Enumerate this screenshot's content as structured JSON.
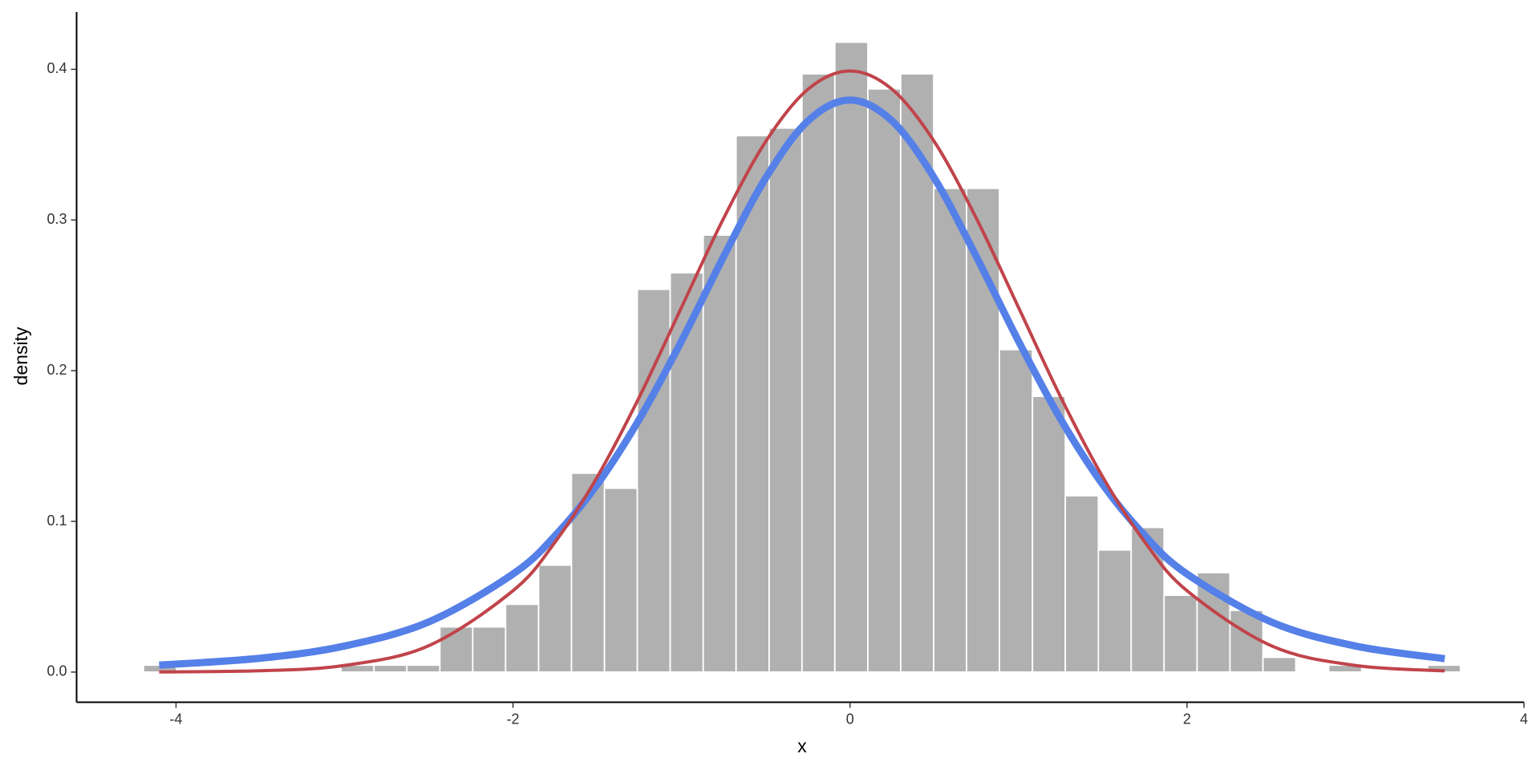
{
  "chart_data": {
    "type": "histogram",
    "xlabel": "x",
    "ylabel": "density",
    "bins": [
      -4.193,
      -3.998,
      -3.802,
      -3.607,
      -3.411,
      -3.216,
      -3.021,
      -2.825,
      -2.63,
      -2.434,
      -2.239,
      -2.044,
      -1.848,
      -1.653,
      -1.457,
      -1.262,
      -1.067,
      -0.871,
      -0.676,
      -0.48,
      -0.285,
      -0.09,
      0.106,
      0.301,
      0.497,
      0.692,
      0.887,
      1.083,
      1.278,
      1.474,
      1.669,
      1.864,
      2.06,
      2.255,
      2.451,
      2.646,
      2.841,
      3.037,
      3.232,
      3.428,
      3.623
    ],
    "values": [
      0.0046,
      0,
      0,
      0,
      0,
      0,
      0.0046,
      0.0046,
      0.0046,
      0.03,
      0.03,
      0.045,
      0.071,
      0.132,
      0.122,
      0.254,
      0.265,
      0.29,
      0.356,
      0.361,
      0.397,
      0.418,
      0.387,
      0.397,
      0.321,
      0.321,
      0.214,
      0.183,
      0.117,
      0.081,
      0.096,
      0.051,
      0.066,
      0.041,
      0.0098,
      0,
      0.0046,
      0,
      0,
      0.0046
    ],
    "color": "#b0b0b0",
    "curves": [
      {
        "color": "#5580e8",
        "width": 9,
        "x": [
          -4.1,
          -3.5,
          -3,
          -2.5,
          -2,
          -1.75,
          -1.5,
          -1.25,
          -1,
          -0.75,
          -0.5,
          -0.25,
          0,
          0.25,
          0.5,
          0.75,
          1,
          1.25,
          1.5,
          1.75,
          2,
          2.5,
          3,
          3.53
        ],
        "values": [
          0.0046,
          0.0092,
          0.0173,
          0.0333,
          0.0651,
          0.0905,
          0.1245,
          0.1679,
          0.2197,
          0.2757,
          0.3279,
          0.3657,
          0.3796,
          0.3657,
          0.3279,
          0.2757,
          0.2197,
          0.1679,
          0.1245,
          0.0905,
          0.0651,
          0.0333,
          0.0173,
          0.0089
        ]
      },
      {
        "color": "#c0444a",
        "width": 4,
        "x": [
          -4.1,
          -3.5,
          -3,
          -2.5,
          -2,
          -1.75,
          -1.5,
          -1.25,
          -1,
          -0.75,
          -0.5,
          -0.25,
          0,
          0.25,
          0.5,
          0.75,
          1,
          1.25,
          1.5,
          1.75,
          2,
          2.5,
          3,
          3.53
        ],
        "values": [
          0.0001,
          0.0009,
          0.0044,
          0.0175,
          0.054,
          0.0863,
          0.1295,
          0.1826,
          0.242,
          0.3011,
          0.3521,
          0.3867,
          0.3989,
          0.3867,
          0.3521,
          0.3011,
          0.242,
          0.1826,
          0.1295,
          0.0863,
          0.054,
          0.0175,
          0.0044,
          0.0008
        ]
      }
    ],
    "xlim": [
      -4.59,
      4.0
    ],
    "ylim": [
      -0.02,
      0.438
    ],
    "xticks": [
      -4,
      -2,
      0,
      2,
      4
    ],
    "yticks": [
      {
        "value": 0,
        "label": "0.0"
      },
      0.1,
      0.2,
      0.3,
      0.4
    ]
  }
}
